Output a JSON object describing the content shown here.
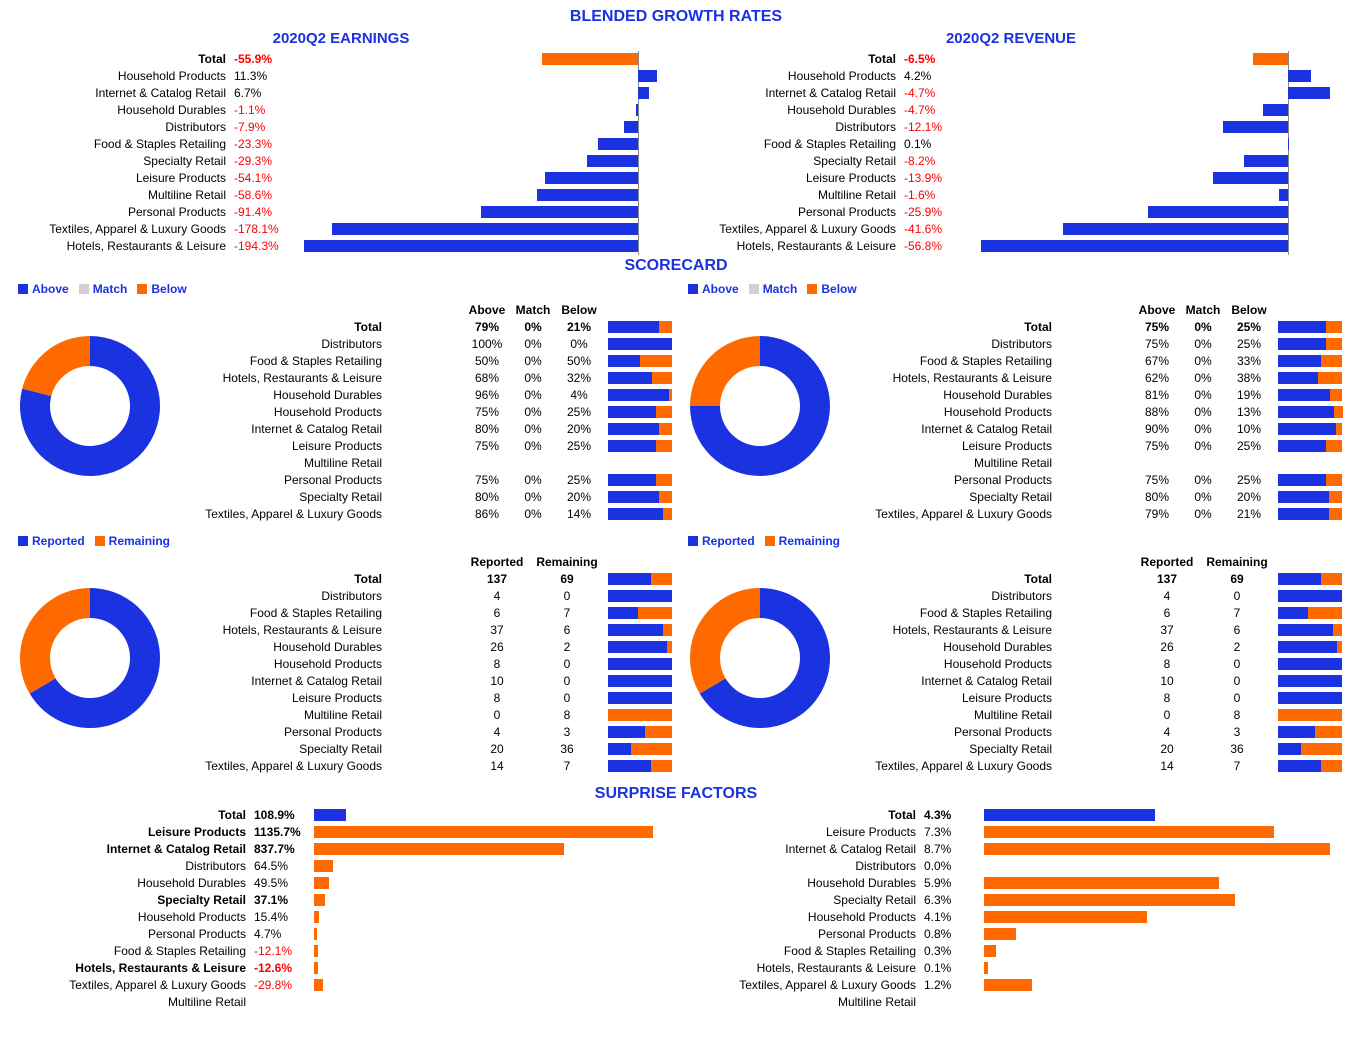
{
  "colors": {
    "blue": "#1a32e0",
    "orange": "#ff6a00",
    "gray": "#d0d0d0",
    "text": "#000000",
    "neg": "#ff0000",
    "bg": "#ffffff",
    "axis": "#888888"
  },
  "fonts": {
    "base_size": 13,
    "label_size": 12,
    "title_size": 16,
    "sub_title_size": 15
  },
  "sections": {
    "blended": "BLENDED GROWTH RATES",
    "scorecard": "SCORECARD",
    "surprise": "SURPRISE FACTORS"
  },
  "growth": {
    "earnings": {
      "title": "2020Q2 EARNINGS",
      "type": "bar",
      "orientation": "horizontal",
      "xlim": [
        -200,
        20
      ],
      "axis_at": 0,
      "rows": [
        {
          "name": "Total",
          "value": -55.9,
          "bold": true,
          "bar_color": "#ff6a00"
        },
        {
          "name": "Household Products",
          "value": 11.3,
          "bar_color": "#1a32e0"
        },
        {
          "name": "Internet & Catalog Retail",
          "value": 6.7,
          "bar_color": "#1a32e0"
        },
        {
          "name": "Household Durables",
          "value": -1.1,
          "bar_color": "#1a32e0"
        },
        {
          "name": "Distributors",
          "value": -7.9,
          "bar_color": "#1a32e0"
        },
        {
          "name": "Food & Staples Retailing",
          "value": -23.3,
          "bar_color": "#1a32e0"
        },
        {
          "name": "Specialty Retail",
          "value": -29.3,
          "bar_color": "#1a32e0"
        },
        {
          "name": "Leisure Products",
          "value": -54.1,
          "bar_color": "#1a32e0"
        },
        {
          "name": "Multiline Retail",
          "value": -58.6,
          "bar_color": "#1a32e0"
        },
        {
          "name": "Personal Products",
          "value": -91.4,
          "bar_color": "#1a32e0"
        },
        {
          "name": "Textiles, Apparel & Luxury Goods",
          "value": -178.1,
          "bar_color": "#1a32e0"
        },
        {
          "name": "Hotels, Restaurants & Leisure",
          "value": -194.3,
          "bar_color": "#1a32e0"
        }
      ]
    },
    "revenue": {
      "title": "2020Q2 REVENUE",
      "type": "bar",
      "orientation": "horizontal",
      "xlim": [
        -60,
        10
      ],
      "axis_at": 0,
      "rows": [
        {
          "name": "Total",
          "value": -6.5,
          "bold": true,
          "bar_color": "#ff6a00"
        },
        {
          "name": "Household Products",
          "value": 4.2,
          "bar_color": "#1a32e0"
        },
        {
          "name": "Internet & Catalog Retail",
          "value": -4.7,
          "bar_color": "#1a32e0",
          "special_extent": 78
        },
        {
          "name": "Household Durables",
          "value": -4.7,
          "bar_color": "#1a32e0"
        },
        {
          "name": "Distributors",
          "value": -12.1,
          "bar_color": "#1a32e0"
        },
        {
          "name": "Food & Staples Retailing",
          "value": 0.1,
          "bar_color": "#1a32e0"
        },
        {
          "name": "Specialty Retail",
          "value": -8.2,
          "bar_color": "#1a32e0"
        },
        {
          "name": "Leisure Products",
          "value": -13.9,
          "bar_color": "#1a32e0"
        },
        {
          "name": "Multiline Retail",
          "value": -1.6,
          "bar_color": "#1a32e0"
        },
        {
          "name": "Personal Products",
          "value": -25.9,
          "bar_color": "#1a32e0"
        },
        {
          "name": "Textiles, Apparel & Luxury Goods",
          "value": -41.6,
          "bar_color": "#1a32e0"
        },
        {
          "name": "Hotels, Restaurants & Leisure",
          "value": -56.8,
          "bar_color": "#1a32e0"
        }
      ]
    }
  },
  "scorecard": {
    "legend_amb": [
      {
        "label": "Above",
        "color": "#1a32e0"
      },
      {
        "label": "Match",
        "color": "#d0d0d0"
      },
      {
        "label": "Below",
        "color": "#ff6a00"
      }
    ],
    "legend_rr": [
      {
        "label": "Reported",
        "color": "#1a32e0"
      },
      {
        "label": "Remaining",
        "color": "#ff6a00"
      }
    ],
    "amb_headers": [
      "Above",
      "Match",
      "Below"
    ],
    "rr_headers": [
      "Reported",
      "Remaining"
    ],
    "left_amb": {
      "type": "stacked-bar + donut",
      "donut": {
        "above": 79,
        "match": 0,
        "below": 21
      },
      "rows": [
        {
          "name": "Total",
          "above": 79,
          "match": 0,
          "below": 21,
          "bold": true
        },
        {
          "name": "Distributors",
          "above": 100,
          "match": 0,
          "below": 0
        },
        {
          "name": "Food & Staples Retailing",
          "above": 50,
          "match": 0,
          "below": 50
        },
        {
          "name": "Hotels, Restaurants & Leisure",
          "above": 68,
          "match": 0,
          "below": 32
        },
        {
          "name": "Household Durables",
          "above": 96,
          "match": 0,
          "below": 4
        },
        {
          "name": "Household Products",
          "above": 75,
          "match": 0,
          "below": 25
        },
        {
          "name": "Internet & Catalog Retail",
          "above": 80,
          "match": 0,
          "below": 20
        },
        {
          "name": "Leisure Products",
          "above": 75,
          "match": 0,
          "below": 25
        },
        {
          "name": "Multiline Retail",
          "above": null,
          "match": null,
          "below": null
        },
        {
          "name": "Personal Products",
          "above": 75,
          "match": 0,
          "below": 25
        },
        {
          "name": "Specialty Retail",
          "above": 80,
          "match": 0,
          "below": 20
        },
        {
          "name": "Textiles, Apparel & Luxury Goods",
          "above": 86,
          "match": 0,
          "below": 14
        }
      ]
    },
    "right_amb": {
      "type": "stacked-bar + donut",
      "donut": {
        "above": 75,
        "match": 0,
        "below": 25
      },
      "rows": [
        {
          "name": "Total",
          "above": 75,
          "match": 0,
          "below": 25,
          "bold": true
        },
        {
          "name": "Distributors",
          "above": 75,
          "match": 0,
          "below": 25
        },
        {
          "name": "Food & Staples Retailing",
          "above": 67,
          "match": 0,
          "below": 33
        },
        {
          "name": "Hotels, Restaurants & Leisure",
          "above": 62,
          "match": 0,
          "below": 38
        },
        {
          "name": "Household Durables",
          "above": 81,
          "match": 0,
          "below": 19
        },
        {
          "name": "Household Products",
          "above": 88,
          "match": 0,
          "below": 13
        },
        {
          "name": "Internet & Catalog Retail",
          "above": 90,
          "match": 0,
          "below": 10
        },
        {
          "name": "Leisure Products",
          "above": 75,
          "match": 0,
          "below": 25
        },
        {
          "name": "Multiline Retail",
          "above": null,
          "match": null,
          "below": null
        },
        {
          "name": "Personal Products",
          "above": 75,
          "match": 0,
          "below": 25
        },
        {
          "name": "Specialty Retail",
          "above": 80,
          "match": 0,
          "below": 20
        },
        {
          "name": "Textiles, Apparel & Luxury Goods",
          "above": 79,
          "match": 0,
          "below": 21
        }
      ]
    },
    "left_rr": {
      "type": "stacked-bar + donut",
      "donut": {
        "reported": 137,
        "remaining": 69
      },
      "rows": [
        {
          "name": "Total",
          "reported": 137,
          "remaining": 69,
          "bold": true
        },
        {
          "name": "Distributors",
          "reported": 4,
          "remaining": 0
        },
        {
          "name": "Food & Staples Retailing",
          "reported": 6,
          "remaining": 7
        },
        {
          "name": "Hotels, Restaurants & Leisure",
          "reported": 37,
          "remaining": 6
        },
        {
          "name": "Household Durables",
          "reported": 26,
          "remaining": 2
        },
        {
          "name": "Household Products",
          "reported": 8,
          "remaining": 0
        },
        {
          "name": "Internet & Catalog Retail",
          "reported": 10,
          "remaining": 0
        },
        {
          "name": "Leisure Products",
          "reported": 8,
          "remaining": 0
        },
        {
          "name": "Multiline Retail",
          "reported": 0,
          "remaining": 8
        },
        {
          "name": "Personal Products",
          "reported": 4,
          "remaining": 3
        },
        {
          "name": "Specialty Retail",
          "reported": 20,
          "remaining": 36
        },
        {
          "name": "Textiles, Apparel & Luxury Goods",
          "reported": 14,
          "remaining": 7
        }
      ]
    },
    "right_rr": {
      "type": "stacked-bar + donut",
      "donut": {
        "reported": 137,
        "remaining": 69
      },
      "rows": [
        {
          "name": "Total",
          "reported": 137,
          "remaining": 69,
          "bold": true
        },
        {
          "name": "Distributors",
          "reported": 4,
          "remaining": 0
        },
        {
          "name": "Food & Staples Retailing",
          "reported": 6,
          "remaining": 7
        },
        {
          "name": "Hotels, Restaurants & Leisure",
          "reported": 37,
          "remaining": 6
        },
        {
          "name": "Household Durables",
          "reported": 26,
          "remaining": 2
        },
        {
          "name": "Household Products",
          "reported": 8,
          "remaining": 0
        },
        {
          "name": "Internet & Catalog Retail",
          "reported": 10,
          "remaining": 0
        },
        {
          "name": "Leisure Products",
          "reported": 8,
          "remaining": 0
        },
        {
          "name": "Multiline Retail",
          "reported": 0,
          "remaining": 8
        },
        {
          "name": "Personal Products",
          "reported": 4,
          "remaining": 3
        },
        {
          "name": "Specialty Retail",
          "reported": 20,
          "remaining": 36
        },
        {
          "name": "Textiles, Apparel & Luxury Goods",
          "reported": 14,
          "remaining": 7
        }
      ]
    }
  },
  "surprise": {
    "left": {
      "type": "bar",
      "xlim": [
        0,
        1200
      ],
      "rows": [
        {
          "name": "Total",
          "value": 108.9,
          "bold": true,
          "bar_color": "#1a32e0"
        },
        {
          "name": "Leisure Products",
          "value": 1135.7,
          "bold": true,
          "bar_color": "#ff6a00"
        },
        {
          "name": "Internet & Catalog Retail",
          "value": 837.7,
          "bold": true,
          "bar_color": "#ff6a00"
        },
        {
          "name": "Distributors",
          "value": 64.5,
          "bar_color": "#ff6a00"
        },
        {
          "name": "Household Durables",
          "value": 49.5,
          "bar_color": "#ff6a00"
        },
        {
          "name": "Specialty Retail",
          "value": 37.1,
          "bold": true,
          "bar_color": "#ff6a00"
        },
        {
          "name": "Household Products",
          "value": 15.4,
          "bar_color": "#ff6a00"
        },
        {
          "name": "Personal Products",
          "value": 4.7,
          "bar_color": "#ff6a00"
        },
        {
          "name": "Food & Staples Retailing",
          "value": -12.1,
          "bar_color": "#ff6a00"
        },
        {
          "name": "Hotels, Restaurants & Leisure",
          "value": -12.6,
          "bold": true,
          "bar_color": "#ff6a00"
        },
        {
          "name": "Textiles, Apparel & Luxury Goods",
          "value": -29.8,
          "bar_color": "#ff6a00"
        },
        {
          "name": "Multiline Retail",
          "value": null
        }
      ]
    },
    "right": {
      "type": "bar",
      "xlim": [
        0,
        9
      ],
      "rows": [
        {
          "name": "Total",
          "value": 4.3,
          "bold": true,
          "bar_color": "#1a32e0"
        },
        {
          "name": "Leisure Products",
          "value": 7.3,
          "bar_color": "#ff6a00"
        },
        {
          "name": "Internet & Catalog Retail",
          "value": 8.7,
          "bar_color": "#ff6a00"
        },
        {
          "name": "Distributors",
          "value": 0.0,
          "bar_color": "#ff6a00"
        },
        {
          "name": "Household Durables",
          "value": 5.9,
          "bar_color": "#ff6a00"
        },
        {
          "name": "Specialty Retail",
          "value": 6.3,
          "bar_color": "#ff6a00"
        },
        {
          "name": "Household Products",
          "value": 4.1,
          "bar_color": "#ff6a00"
        },
        {
          "name": "Personal Products",
          "value": 0.8,
          "bar_color": "#ff6a00"
        },
        {
          "name": "Food & Staples Retailing",
          "value": 0.3,
          "bar_color": "#ff6a00"
        },
        {
          "name": "Hotels, Restaurants & Leisure",
          "value": 0.1,
          "bar_color": "#ff6a00"
        },
        {
          "name": "Textiles, Apparel & Luxury Goods",
          "value": 1.2,
          "bar_color": "#ff6a00"
        },
        {
          "name": "Multiline Retail",
          "value": null
        }
      ]
    }
  }
}
